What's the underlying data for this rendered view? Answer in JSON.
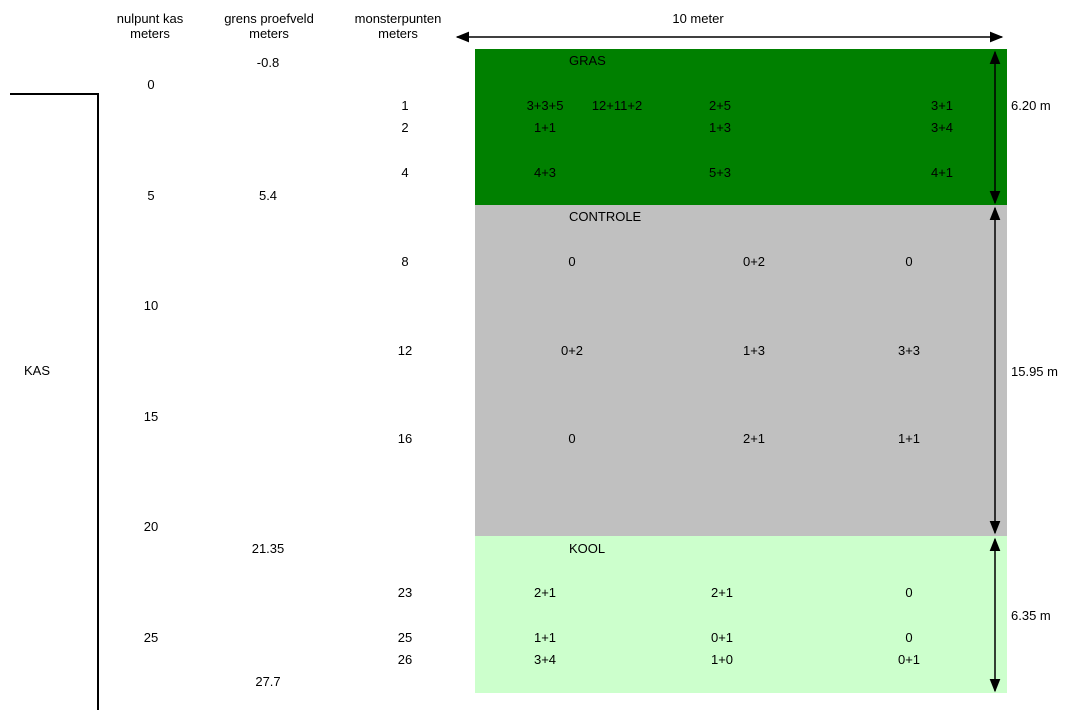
{
  "headers": {
    "nulpunt": "nulpunt kas\nmeters",
    "grens": "grens proefveld\nmeters",
    "monster": "monsterpunten\nmeters",
    "width": "10 meter"
  },
  "kas_label": "KAS",
  "nulpunt_ticks": [
    "0",
    "5",
    "10",
    "15",
    "20",
    "25"
  ],
  "grens_values": [
    "-0.8",
    "5.4",
    "21.35",
    "27.7"
  ],
  "monster_values": [
    "1",
    "2",
    "4",
    "8",
    "12",
    "16",
    "23",
    "25",
    "26"
  ],
  "colors": {
    "gras": "#008000",
    "controle": "#c0c0c0",
    "kool": "#ccffcc"
  },
  "zones": {
    "gras": {
      "label": "GRAS",
      "height_label": "6.20 m",
      "rows": [
        [
          "3+3+5",
          "12+11+2",
          "2+5",
          "3+1"
        ],
        [
          "1+1",
          "1+3",
          "3+4"
        ],
        [
          "4+3",
          "5+3",
          "4+1"
        ]
      ]
    },
    "controle": {
      "label": "CONTROLE",
      "height_label": "15.95 m",
      "rows": [
        [
          "0",
          "0+2",
          "0"
        ],
        [
          "0+2",
          "1+3",
          "3+3"
        ],
        [
          "0",
          "2+1",
          "1+1"
        ]
      ]
    },
    "kool": {
      "label": "KOOL",
      "height_label": "6.35 m",
      "rows": [
        [
          "2+1",
          "2+1",
          "0"
        ],
        [
          "1+1",
          "0+1",
          "0"
        ],
        [
          "3+4",
          "1+0",
          "0+1"
        ]
      ]
    }
  }
}
